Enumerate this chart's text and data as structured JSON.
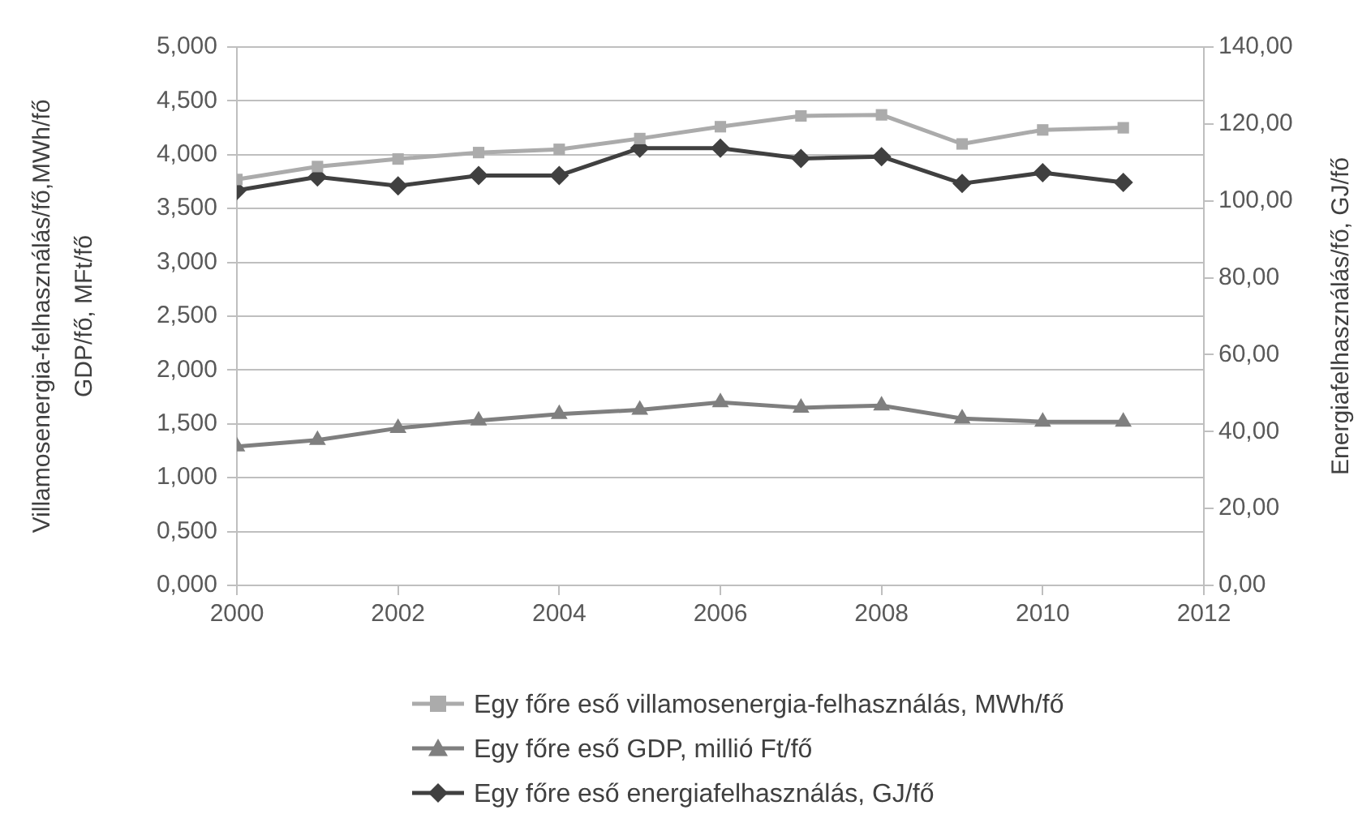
{
  "chart_data": {
    "type": "line",
    "x": [
      2000,
      2001,
      2002,
      2003,
      2004,
      2005,
      2006,
      2007,
      2008,
      2009,
      2010,
      2011
    ],
    "xlim": [
      2000,
      2012
    ],
    "xticks": [
      2000,
      2002,
      2004,
      2006,
      2008,
      2010,
      2012
    ],
    "ylabel": "Villamosenergia-felhasználás/fő,MWh/fő\nGDP/fő, MFt/fő",
    "y2label": "Energiafelhasználás/fő, GJ/fő",
    "ylim": [
      0,
      5
    ],
    "yticks": [
      {
        "value": 0,
        "label": "0,000"
      },
      {
        "value": 0.5,
        "label": "0,500"
      },
      {
        "value": 1,
        "label": "1,000"
      },
      {
        "value": 1.5,
        "label": "1,500"
      },
      {
        "value": 2,
        "label": "2,000"
      },
      {
        "value": 2.5,
        "label": "2,500"
      },
      {
        "value": 3,
        "label": "3,000"
      },
      {
        "value": 3.5,
        "label": "3,500"
      },
      {
        "value": 4,
        "label": "4,000"
      },
      {
        "value": 4.5,
        "label": "4,500"
      },
      {
        "value": 5,
        "label": "5,000"
      }
    ],
    "y2lim": [
      0,
      140
    ],
    "y2ticks": [
      {
        "value": 0,
        "label": "0,00"
      },
      {
        "value": 20,
        "label": "20,00"
      },
      {
        "value": 40,
        "label": "40,00"
      },
      {
        "value": 60,
        "label": "60,00"
      },
      {
        "value": 80,
        "label": "80,00"
      },
      {
        "value": 100,
        "label": "100,00"
      },
      {
        "value": 120,
        "label": "120,00"
      },
      {
        "value": 140,
        "label": "140,00"
      }
    ],
    "grid": "y",
    "legend": "bottom",
    "line_style": "solid",
    "series": [
      {
        "name": "Egy főre eső villamosenergia-felhasználás, MWh/fő",
        "color": "#ababab",
        "marker": "square",
        "values": [
          3.77,
          3.89,
          3.96,
          4.02,
          4.05,
          4.15,
          4.26,
          4.36,
          4.37,
          4.1,
          4.23,
          4.25
        ]
      },
      {
        "name": "Egy főre eső GDP, millió Ft/fő",
        "color": "#7f7f7f",
        "marker": "triangle",
        "values": [
          1.29,
          1.35,
          1.46,
          1.53,
          1.59,
          1.63,
          1.7,
          1.65,
          1.67,
          1.55,
          1.52,
          1.52
        ]
      },
      {
        "name": "Egy főre eső energiafelhasználás, GJ/fő",
        "color": "#404040",
        "marker": "diamond",
        "axis": "y2",
        "values": [
          102.7,
          106.2,
          103.9,
          106.6,
          106.6,
          113.7,
          113.7,
          111.0,
          111.5,
          104.5,
          107.3,
          104.8
        ]
      }
    ]
  }
}
